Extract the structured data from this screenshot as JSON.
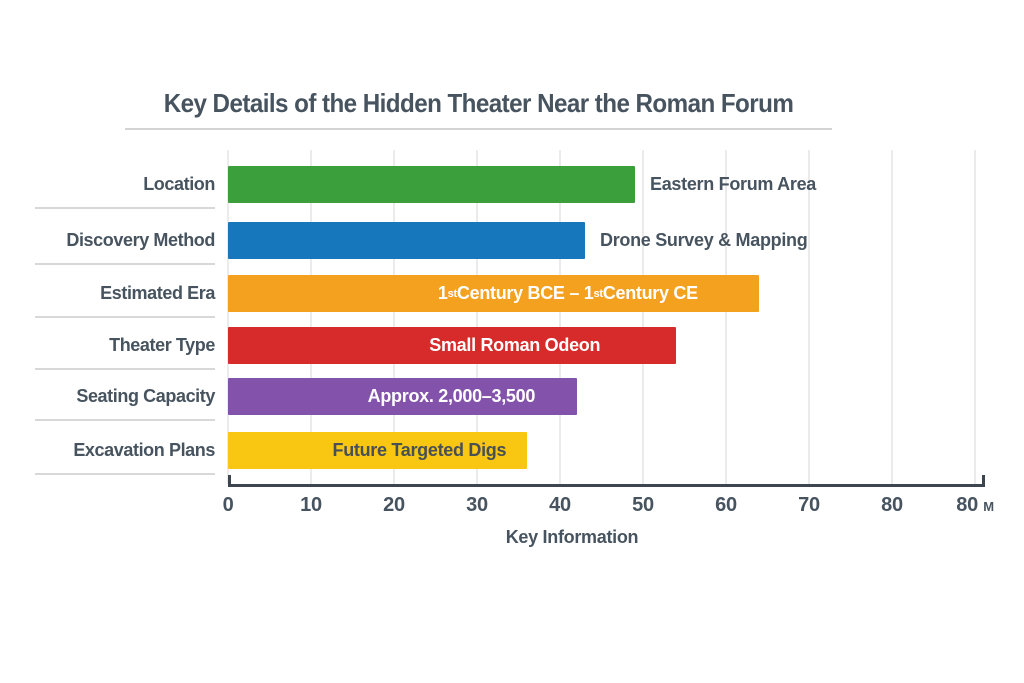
{
  "header": {
    "title": "Key Details of the Hidden Theater Near the Roman Forum"
  },
  "chart_data": {
    "type": "bar",
    "orientation": "horizontal",
    "title": "Key Details of the Hidden Theater Near the Roman Forum",
    "xlabel": "Key Information",
    "ylabel": "",
    "xlim": [
      0,
      90
    ],
    "grid": true,
    "legend": "none",
    "x_tick_labels": [
      "0",
      "10",
      "20",
      "30",
      "40",
      "50",
      "60",
      "70",
      "80",
      "80 M"
    ],
    "categories": [
      "Location",
      "Discovery Method",
      "Estimated Era",
      "Theater Type",
      "Seating Capacity",
      "Excavation Plans"
    ],
    "series": [
      {
        "name": "Key Information",
        "values": [
          49,
          43,
          64,
          54,
          42,
          36
        ]
      }
    ],
    "bars": [
      {
        "category": "Location",
        "value": 49,
        "label": "Eastern Forum Area",
        "label_position": "outside-right",
        "color": "#3BA03C",
        "label_color": "#47545F"
      },
      {
        "category": "Discovery Method",
        "value": 43,
        "label": "Drone Survey & Mapping",
        "label_position": "outside-right",
        "color": "#1777BD",
        "label_color": "#47545F"
      },
      {
        "category": "Estimated Era",
        "value": 64,
        "label": "1st Century BCE – 1st Century CE",
        "label_position": "inside",
        "color": "#F5A120",
        "label_color": "#FFFFFF"
      },
      {
        "category": "Theater Type",
        "value": 54,
        "label": "Small Roman Odeon",
        "label_position": "inside",
        "color": "#D62A2B",
        "label_color": "#FFFFFF"
      },
      {
        "category": "Seating Capacity",
        "value": 42,
        "label": "Approx. 2,000–3,500",
        "label_position": "inside",
        "color": "#8352AA",
        "label_color": "#FFFFFF"
      },
      {
        "category": "Excavation Plans",
        "value": 36,
        "label": "Future Targeted Digs",
        "label_position": "inside",
        "color": "#F9C611",
        "label_color": "#475055"
      }
    ]
  },
  "colors": {
    "title_text": "#47545F",
    "tick_text": "#47545F",
    "axis_line": "#3D464E",
    "gridline": "#EBEBEB",
    "row_separator": "#D8D8D8",
    "title_divider": "#D4D4D4",
    "background": "#FFFFFF"
  }
}
